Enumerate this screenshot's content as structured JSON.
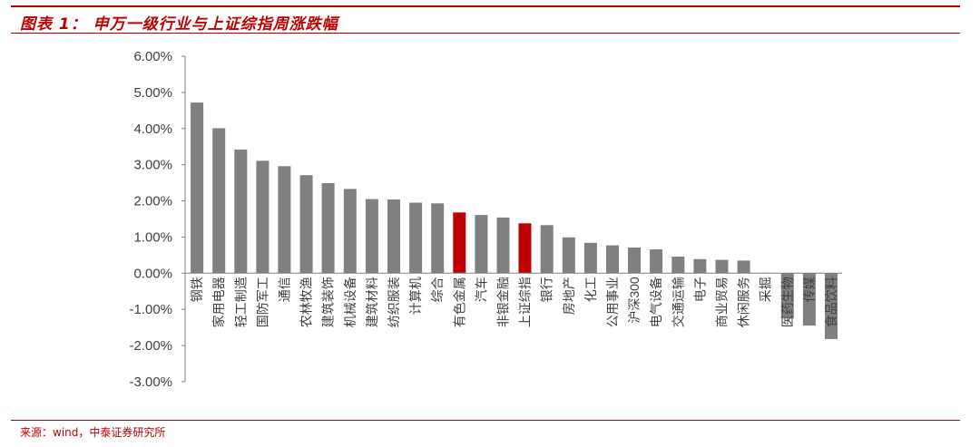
{
  "header": {
    "title": "图表 1： 申万一级行业与上证综指周涨跌幅"
  },
  "footer": {
    "source": "来源：wind，中泰证券研究所"
  },
  "colors": {
    "bar": "#808080",
    "highlight": "#c00000",
    "axis": "#808080",
    "tick_text": "#404040"
  },
  "chart_data": {
    "type": "bar",
    "title": "",
    "xlabel": "",
    "ylabel": "",
    "ylim": [
      -3.0,
      6.0
    ],
    "yticks": [
      6.0,
      5.0,
      4.0,
      3.0,
      2.0,
      1.0,
      0.0,
      -1.0,
      -2.0,
      -3.0
    ],
    "ytick_labels": [
      "6.00%",
      "5.00%",
      "4.00%",
      "3.00%",
      "2.00%",
      "1.00%",
      "0.00%",
      "-1.00%",
      "-2.00%",
      "-3.00%"
    ],
    "unit": "%",
    "grid": false,
    "categories": [
      "钢铁",
      "家用电器",
      "轻工制造",
      "国防军工",
      "通信",
      "农林牧渔",
      "建筑装饰",
      "机械设备",
      "建筑材料",
      "纺织服装",
      "计算机",
      "综合",
      "有色金属",
      "汽车",
      "非银金融",
      "上证综指",
      "银行",
      "房地产",
      "化工",
      "公用事业",
      "沪深300",
      "电气设备",
      "交通运输",
      "电子",
      "商业贸易",
      "休闲服务",
      "采掘",
      "医药生物",
      "传媒",
      "食品饮料"
    ],
    "values": [
      4.72,
      4.01,
      3.42,
      3.11,
      2.96,
      2.71,
      2.49,
      2.33,
      2.05,
      2.04,
      1.95,
      1.93,
      1.68,
      1.61,
      1.54,
      1.38,
      1.33,
      0.99,
      0.84,
      0.77,
      0.71,
      0.66,
      0.46,
      0.39,
      0.37,
      0.35,
      0.01,
      -1.25,
      -1.45,
      -1.82
    ],
    "highlight": [
      "有色金属",
      "上证综指"
    ]
  }
}
